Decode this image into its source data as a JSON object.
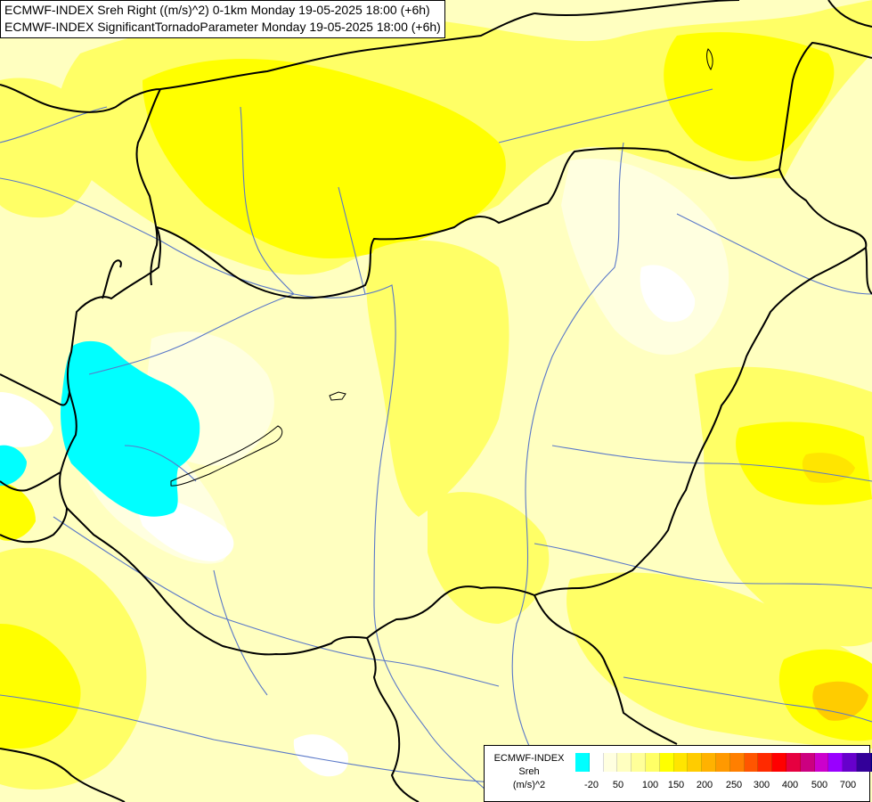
{
  "header": {
    "line1": "ECMWF-INDEX Sreh Right ((m/s)^2) 0-1km Monday 19-05-2025 18:00 (+6h)",
    "line2": "ECMWF-INDEX SignificantTornadoParameter Monday 19-05-2025 18:00 (+6h)"
  },
  "legend": {
    "source": "ECMWF-INDEX",
    "variable": "Sreh",
    "unit": "(m/s)^2",
    "colors": [
      "#00ffff",
      "#ffffff",
      "#ffffe0",
      "#ffffc0",
      "#ffff99",
      "#ffff66",
      "#ffff00",
      "#ffe500",
      "#ffcc00",
      "#ffb200",
      "#ff9900",
      "#ff7f00",
      "#ff5500",
      "#ff2a00",
      "#ff0000",
      "#e60040",
      "#cc0080",
      "#cc00cc",
      "#9900ff",
      "#6600cc",
      "#330099",
      "#000080"
    ],
    "ticks": [
      "-20",
      "50",
      "100",
      "150",
      "200",
      "250",
      "300",
      "400",
      "500",
      "700"
    ]
  },
  "map": {
    "fill_colors": {
      "background": "#ffffc0",
      "pale": "#ffffe0",
      "light": "#ffff99",
      "medium": "#ffff66",
      "strong": "#ffff00",
      "orange_light": "#ffe500",
      "orange": "#ffcc00",
      "white": "#ffffff",
      "cyan": "#00ffff"
    },
    "border_color": "#000000",
    "river_color": "#5a78c8"
  }
}
